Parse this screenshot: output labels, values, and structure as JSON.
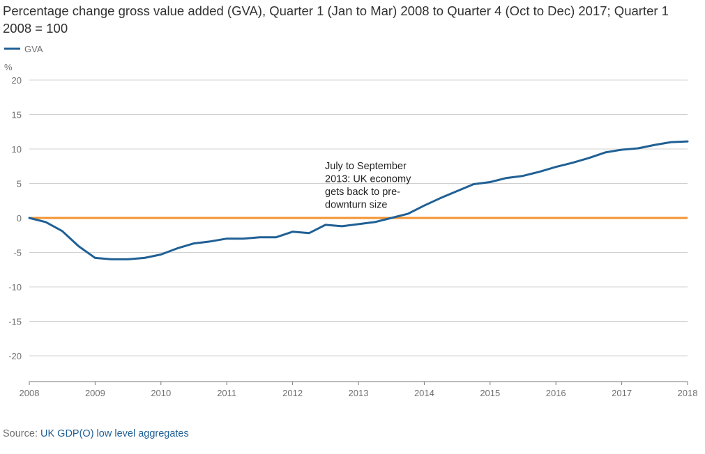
{
  "chart_data": {
    "type": "line",
    "title": "Percentage change gross value added (GVA), Quarter 1 (Jan to Mar) 2008 to Quarter 4 (Oct to Dec) 2017; Quarter 1 2008 = 100",
    "ylabel": "%",
    "xlabel": "",
    "ylim": [
      -24,
      20
    ],
    "xlim": [
      2008,
      2018
    ],
    "yticks": [
      20,
      15,
      10,
      5,
      0,
      -5,
      -10,
      -15,
      -20
    ],
    "xticks": [
      "2008",
      "2009",
      "2010",
      "2011",
      "2012",
      "2013",
      "2014",
      "2015",
      "2016",
      "2017",
      "2018"
    ],
    "legend": [
      {
        "name": "GVA",
        "color": "#206095"
      }
    ],
    "series": [
      {
        "name": "GVA",
        "color": "#206095",
        "x": [
          2008.0,
          2008.25,
          2008.5,
          2008.75,
          2009.0,
          2009.25,
          2009.5,
          2009.75,
          2010.0,
          2010.25,
          2010.5,
          2010.75,
          2011.0,
          2011.25,
          2011.5,
          2011.75,
          2012.0,
          2012.25,
          2012.5,
          2012.75,
          2013.0,
          2013.25,
          2013.5,
          2013.75,
          2014.0,
          2014.25,
          2014.5,
          2014.75,
          2015.0,
          2015.25,
          2015.5,
          2015.75,
          2016.0,
          2016.25,
          2016.5,
          2016.75,
          2017.0,
          2017.25,
          2017.5,
          2017.75,
          2018.0
        ],
        "values": [
          0,
          -0.6,
          -1.9,
          -4.1,
          -5.8,
          -6.0,
          -6.0,
          -5.8,
          -5.3,
          -4.4,
          -3.7,
          -3.4,
          -3.0,
          -3.0,
          -2.8,
          -2.8,
          -2.0,
          -2.2,
          -1.0,
          -1.2,
          -0.9,
          -0.6,
          0.0,
          0.6,
          1.8,
          2.9,
          3.9,
          4.9,
          5.2,
          5.8,
          6.1,
          6.7,
          7.4,
          8.0,
          8.7,
          9.5,
          9.9,
          10.1,
          10.6,
          11.0,
          11.1
        ]
      }
    ],
    "reference_line": {
      "value": 0,
      "color": "#f39431"
    },
    "annotation": {
      "lines": [
        "July to September",
        "2013: UK economy",
        "gets back to pre-",
        "downturn size"
      ]
    },
    "source_prefix": "Source: ",
    "source_link": "UK GDP(O) low level aggregates"
  }
}
